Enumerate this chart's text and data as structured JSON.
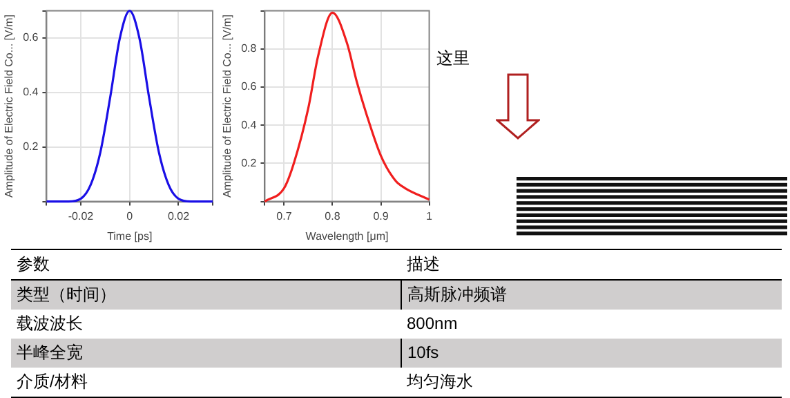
{
  "chart_data": [
    {
      "type": "line",
      "xlabel": "Time [ps]",
      "ylabel": "Amplitude of Electric Field Co... [V/m]",
      "xlim": [
        -0.034,
        0.034
      ],
      "xticks": [
        {
          "value": -0.034,
          "label": null
        },
        -0.02,
        0,
        0.02,
        {
          "value": 0.034,
          "label": null
        }
      ],
      "ylim": [
        0,
        0.7
      ],
      "yticks": [
        {
          "value": 0,
          "label": null
        },
        0.2,
        0.4,
        0.6,
        {
          "value": 0.7,
          "label": null
        }
      ],
      "grid": true,
      "marker": "none",
      "series": [
        {
          "color": "#1a0fe6",
          "x": [
            -0.034,
            -0.025,
            -0.02,
            -0.016,
            -0.012,
            -0.008,
            -0.004,
            0,
            0.004,
            0.008,
            0.012,
            0.016,
            0.02,
            0.025,
            0.034
          ],
          "values": [
            0,
            0,
            0.01,
            0.06,
            0.18,
            0.38,
            0.6,
            0.7,
            0.6,
            0.38,
            0.18,
            0.06,
            0.01,
            0,
            0
          ]
        }
      ]
    },
    {
      "type": "line",
      "xlabel": "Wavelength [μm]",
      "ylabel": "Amplitude of Electric Field Co... [V/m]",
      "xlim": [
        0.66,
        1
      ],
      "xticks": [
        {
          "value": 0.66,
          "label": null
        },
        0.7,
        0.8,
        0.9,
        1
      ],
      "ylim": [
        0,
        1
      ],
      "yticks": [
        {
          "value": 0,
          "label": null
        },
        0.2,
        0.4,
        0.6,
        0.8,
        {
          "value": 1,
          "label": null
        }
      ],
      "grid": true,
      "marker": "none",
      "series": [
        {
          "color": "#f01e1e",
          "x": [
            0.66,
            0.7,
            0.72,
            0.75,
            0.77,
            0.8,
            0.83,
            0.85,
            0.87,
            0.9,
            0.93,
            0.95,
            1
          ],
          "values": [
            0,
            0.07,
            0.2,
            0.49,
            0.76,
            0.99,
            0.83,
            0.63,
            0.46,
            0.24,
            0.11,
            0.07,
            0.01
          ]
        }
      ]
    },
    {
      "type": "other",
      "annotations": [
        "这里",
        "参数",
        "描述",
        "类型（时间）",
        "高斯脉冲频谱",
        "载波波长",
        "800nm",
        "半峰全宽",
        "10fs",
        "介质/材料",
        "均匀海水"
      ]
    }
  ]
}
